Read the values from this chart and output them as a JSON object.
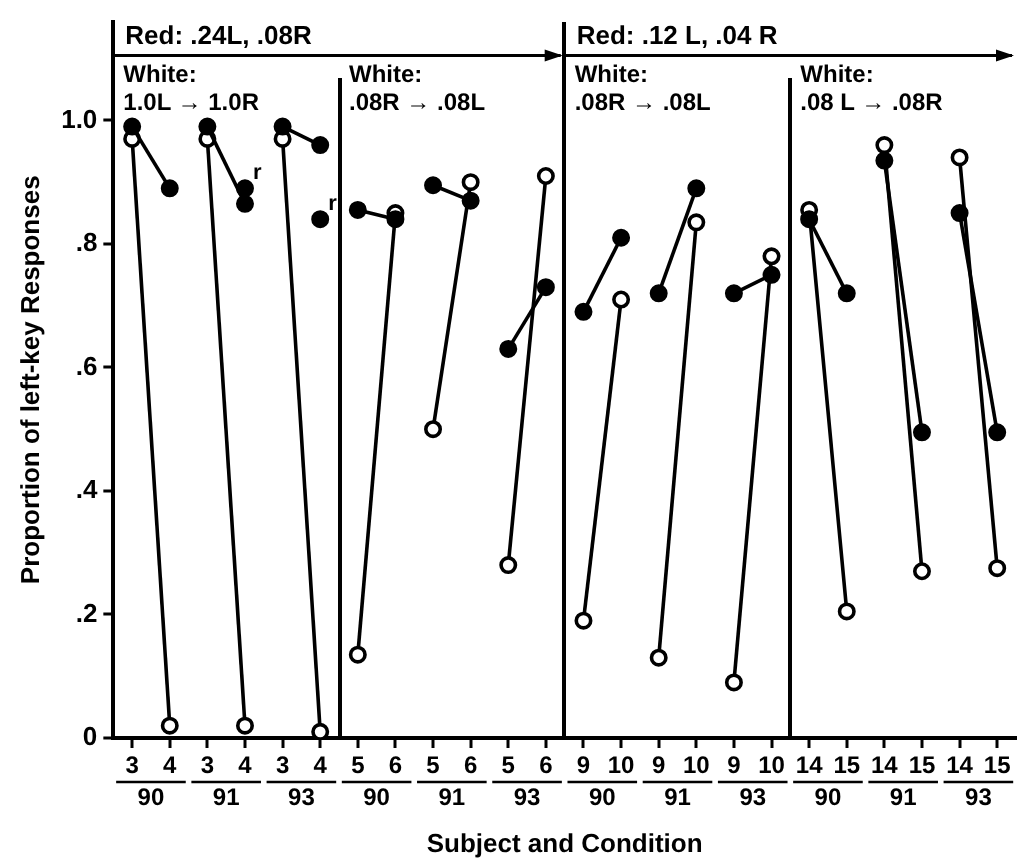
{
  "chart_data": {
    "type": "line",
    "xlabel": "Subject and Condition",
    "ylabel": "Proportion of left-key Responses",
    "categories": [
      "3",
      "4",
      "3",
      "4",
      "3",
      "4",
      "5",
      "6",
      "5",
      "6",
      "5",
      "6",
      "9",
      "10",
      "9",
      "10",
      "9",
      "10",
      "14",
      "15",
      "14",
      "15",
      "14",
      "15"
    ],
    "ylim": [
      0,
      1.16
    ],
    "yticks": [
      0,
      {
        "value": 0.2,
        "label": ".2"
      },
      {
        "value": 0.4,
        "label": ".4"
      },
      {
        "value": 0.6,
        "label": ".6"
      },
      {
        "value": 0.8,
        "label": ".8"
      },
      {
        "value": 1.0,
        "label": "1.0"
      }
    ],
    "grid": false,
    "legend": false,
    "marker": "circle",
    "line_style": "solid",
    "series": [
      {
        "color": "#000000",
        "values": [
          0.99,
          0.89,
          null,
          null,
          null,
          null,
          null,
          null,
          null,
          null,
          null,
          null,
          null,
          null,
          null,
          null,
          null,
          null,
          null,
          null,
          null,
          null,
          null,
          null
        ]
      },
      {
        "color": "#000000",
        "colors": [
          "#ffffff",
          "#ffffff",
          null,
          null,
          null,
          null,
          null,
          null,
          null,
          null,
          null,
          null,
          null,
          null,
          null,
          null,
          null,
          null,
          null,
          null,
          null,
          null,
          null,
          null
        ],
        "values": [
          0.97,
          0.02,
          null,
          null,
          null,
          null,
          null,
          null,
          null,
          null,
          null,
          null,
          null,
          null,
          null,
          null,
          null,
          null,
          null,
          null,
          null,
          null,
          null,
          null
        ]
      },
      {
        "color": "#000000",
        "values": [
          null,
          null,
          0.99,
          0.865,
          null,
          null,
          null,
          null,
          null,
          null,
          null,
          null,
          null,
          null,
          null,
          null,
          null,
          null,
          null,
          null,
          null,
          null,
          null,
          null
        ]
      },
      {
        "color": "#000000",
        "colors": [
          null,
          null,
          "#ffffff",
          "#ffffff",
          null,
          null,
          null,
          null,
          null,
          null,
          null,
          null,
          null,
          null,
          null,
          null,
          null,
          null,
          null,
          null,
          null,
          null,
          null,
          null
        ],
        "values": [
          null,
          null,
          0.97,
          0.02,
          null,
          null,
          null,
          null,
          null,
          null,
          null,
          null,
          null,
          null,
          null,
          null,
          null,
          null,
          null,
          null,
          null,
          null,
          null,
          null
        ]
      },
      {
        "color": "#000000",
        "values": [
          null,
          null,
          null,
          null,
          0.99,
          0.96,
          null,
          null,
          null,
          null,
          null,
          null,
          null,
          null,
          null,
          null,
          null,
          null,
          null,
          null,
          null,
          null,
          null,
          null
        ]
      },
      {
        "color": "#000000",
        "colors": [
          null,
          null,
          null,
          null,
          "#ffffff",
          "#ffffff",
          null,
          null,
          null,
          null,
          null,
          null,
          null,
          null,
          null,
          null,
          null,
          null,
          null,
          null,
          null,
          null,
          null,
          null
        ],
        "values": [
          null,
          null,
          null,
          null,
          0.97,
          0.01,
          null,
          null,
          null,
          null,
          null,
          null,
          null,
          null,
          null,
          null,
          null,
          null,
          null,
          null,
          null,
          null,
          null,
          null
        ]
      },
      {
        "color": "#000000",
        "values": [
          null,
          null,
          null,
          null,
          null,
          null,
          0.855,
          0.84,
          null,
          null,
          null,
          null,
          null,
          null,
          null,
          null,
          null,
          null,
          null,
          null,
          null,
          null,
          null,
          null
        ]
      },
      {
        "color": "#000000",
        "colors": [
          null,
          null,
          null,
          null,
          null,
          null,
          "#ffffff",
          "#ffffff",
          null,
          null,
          null,
          null,
          null,
          null,
          null,
          null,
          null,
          null,
          null,
          null,
          null,
          null,
          null,
          null
        ],
        "values": [
          null,
          null,
          null,
          null,
          null,
          null,
          0.135,
          0.85,
          null,
          null,
          null,
          null,
          null,
          null,
          null,
          null,
          null,
          null,
          null,
          null,
          null,
          null,
          null,
          null
        ]
      },
      {
        "color": "#000000",
        "values": [
          null,
          null,
          null,
          null,
          null,
          null,
          null,
          null,
          0.895,
          0.87,
          null,
          null,
          null,
          null,
          null,
          null,
          null,
          null,
          null,
          null,
          null,
          null,
          null,
          null
        ]
      },
      {
        "color": "#000000",
        "colors": [
          null,
          null,
          null,
          null,
          null,
          null,
          null,
          null,
          "#ffffff",
          "#ffffff",
          null,
          null,
          null,
          null,
          null,
          null,
          null,
          null,
          null,
          null,
          null,
          null,
          null,
          null
        ],
        "values": [
          null,
          null,
          null,
          null,
          null,
          null,
          null,
          null,
          0.5,
          0.9,
          null,
          null,
          null,
          null,
          null,
          null,
          null,
          null,
          null,
          null,
          null,
          null,
          null,
          null
        ]
      },
      {
        "color": "#000000",
        "values": [
          null,
          null,
          null,
          null,
          null,
          null,
          null,
          null,
          null,
          null,
          0.63,
          0.73,
          null,
          null,
          null,
          null,
          null,
          null,
          null,
          null,
          null,
          null,
          null,
          null
        ]
      },
      {
        "color": "#000000",
        "colors": [
          null,
          null,
          null,
          null,
          null,
          null,
          null,
          null,
          null,
          null,
          "#ffffff",
          "#ffffff",
          null,
          null,
          null,
          null,
          null,
          null,
          null,
          null,
          null,
          null,
          null,
          null
        ],
        "values": [
          null,
          null,
          null,
          null,
          null,
          null,
          null,
          null,
          null,
          null,
          0.28,
          0.91,
          null,
          null,
          null,
          null,
          null,
          null,
          null,
          null,
          null,
          null,
          null,
          null
        ]
      },
      {
        "color": "#000000",
        "values": [
          null,
          null,
          null,
          null,
          null,
          null,
          null,
          null,
          null,
          null,
          null,
          null,
          0.69,
          0.81,
          null,
          null,
          null,
          null,
          null,
          null,
          null,
          null,
          null,
          null
        ]
      },
      {
        "color": "#000000",
        "colors": [
          null,
          null,
          null,
          null,
          null,
          null,
          null,
          null,
          null,
          null,
          null,
          null,
          "#ffffff",
          "#ffffff",
          null,
          null,
          null,
          null,
          null,
          null,
          null,
          null,
          null,
          null
        ],
        "values": [
          null,
          null,
          null,
          null,
          null,
          null,
          null,
          null,
          null,
          null,
          null,
          null,
          0.19,
          0.71,
          null,
          null,
          null,
          null,
          null,
          null,
          null,
          null,
          null,
          null
        ]
      },
      {
        "color": "#000000",
        "values": [
          null,
          null,
          null,
          null,
          null,
          null,
          null,
          null,
          null,
          null,
          null,
          null,
          null,
          null,
          0.72,
          0.89,
          null,
          null,
          null,
          null,
          null,
          null,
          null,
          null
        ]
      },
      {
        "color": "#000000",
        "colors": [
          null,
          null,
          null,
          null,
          null,
          null,
          null,
          null,
          null,
          null,
          null,
          null,
          null,
          null,
          "#ffffff",
          "#ffffff",
          null,
          null,
          null,
          null,
          null,
          null,
          null,
          null
        ],
        "values": [
          null,
          null,
          null,
          null,
          null,
          null,
          null,
          null,
          null,
          null,
          null,
          null,
          null,
          null,
          0.13,
          0.835,
          null,
          null,
          null,
          null,
          null,
          null,
          null,
          null
        ]
      },
      {
        "color": "#000000",
        "values": [
          null,
          null,
          null,
          null,
          null,
          null,
          null,
          null,
          null,
          null,
          null,
          null,
          null,
          null,
          null,
          null,
          0.72,
          0.75,
          null,
          null,
          null,
          null,
          null,
          null
        ]
      },
      {
        "color": "#000000",
        "colors": [
          null,
          null,
          null,
          null,
          null,
          null,
          null,
          null,
          null,
          null,
          null,
          null,
          null,
          null,
          null,
          null,
          "#ffffff",
          "#ffffff",
          null,
          null,
          null,
          null,
          null,
          null
        ],
        "values": [
          null,
          null,
          null,
          null,
          null,
          null,
          null,
          null,
          null,
          null,
          null,
          null,
          null,
          null,
          null,
          null,
          0.09,
          0.78,
          null,
          null,
          null,
          null,
          null,
          null
        ]
      },
      {
        "color": "#000000",
        "values": [
          null,
          null,
          null,
          null,
          null,
          null,
          null,
          null,
          null,
          null,
          null,
          null,
          null,
          null,
          null,
          null,
          null,
          null,
          0.84,
          0.72,
          null,
          null,
          null,
          null
        ]
      },
      {
        "color": "#000000",
        "colors": [
          null,
          null,
          null,
          null,
          null,
          null,
          null,
          null,
          null,
          null,
          null,
          null,
          null,
          null,
          null,
          null,
          null,
          null,
          "#ffffff",
          "#ffffff",
          null,
          null,
          null,
          null
        ],
        "values": [
          null,
          null,
          null,
          null,
          null,
          null,
          null,
          null,
          null,
          null,
          null,
          null,
          null,
          null,
          null,
          null,
          null,
          null,
          0.855,
          0.205,
          null,
          null,
          null,
          null
        ]
      },
      {
        "color": "#000000",
        "values": [
          null,
          null,
          null,
          null,
          null,
          null,
          null,
          null,
          null,
          null,
          null,
          null,
          null,
          null,
          null,
          null,
          null,
          null,
          null,
          null,
          0.935,
          0.495,
          null,
          null
        ]
      },
      {
        "color": "#000000",
        "colors": [
          null,
          null,
          null,
          null,
          null,
          null,
          null,
          null,
          null,
          null,
          null,
          null,
          null,
          null,
          null,
          null,
          null,
          null,
          null,
          null,
          "#ffffff",
          "#ffffff",
          null,
          null
        ],
        "values": [
          null,
          null,
          null,
          null,
          null,
          null,
          null,
          null,
          null,
          null,
          null,
          null,
          null,
          null,
          null,
          null,
          null,
          null,
          null,
          null,
          0.96,
          0.27,
          null,
          null
        ]
      },
      {
        "color": "#000000",
        "values": [
          null,
          null,
          null,
          null,
          null,
          null,
          null,
          null,
          null,
          null,
          null,
          null,
          null,
          null,
          null,
          null,
          null,
          null,
          null,
          null,
          null,
          null,
          0.85,
          0.495
        ]
      },
      {
        "color": "#000000",
        "colors": [
          null,
          null,
          null,
          null,
          null,
          null,
          null,
          null,
          null,
          null,
          null,
          null,
          null,
          null,
          null,
          null,
          null,
          null,
          null,
          null,
          null,
          null,
          "#ffffff",
          "#ffffff"
        ],
        "values": [
          null,
          null,
          null,
          null,
          null,
          null,
          null,
          null,
          null,
          null,
          null,
          null,
          null,
          null,
          null,
          null,
          null,
          null,
          null,
          null,
          null,
          null,
          0.94,
          0.275
        ]
      },
      {
        "type": "scatter",
        "color": "#000000",
        "values": [
          null,
          null,
          null,
          0.89,
          null,
          0.84,
          null,
          null,
          null,
          null,
          null,
          null,
          null,
          null,
          null,
          null,
          null,
          null,
          null,
          null,
          null,
          null,
          null,
          null
        ]
      }
    ],
    "annotations": [
      "Red: .24L, .08R",
      "Red: .12 L, .04 R",
      "White: 1.0L → 1.0R",
      "White: .08R → .08L",
      "White: .08R → .08L",
      "White: .08 L → .08R",
      "90",
      "91",
      "93",
      "90",
      "91",
      "93",
      "90",
      "91",
      "93",
      "90",
      "91",
      "93",
      "r",
      "r"
    ]
  }
}
